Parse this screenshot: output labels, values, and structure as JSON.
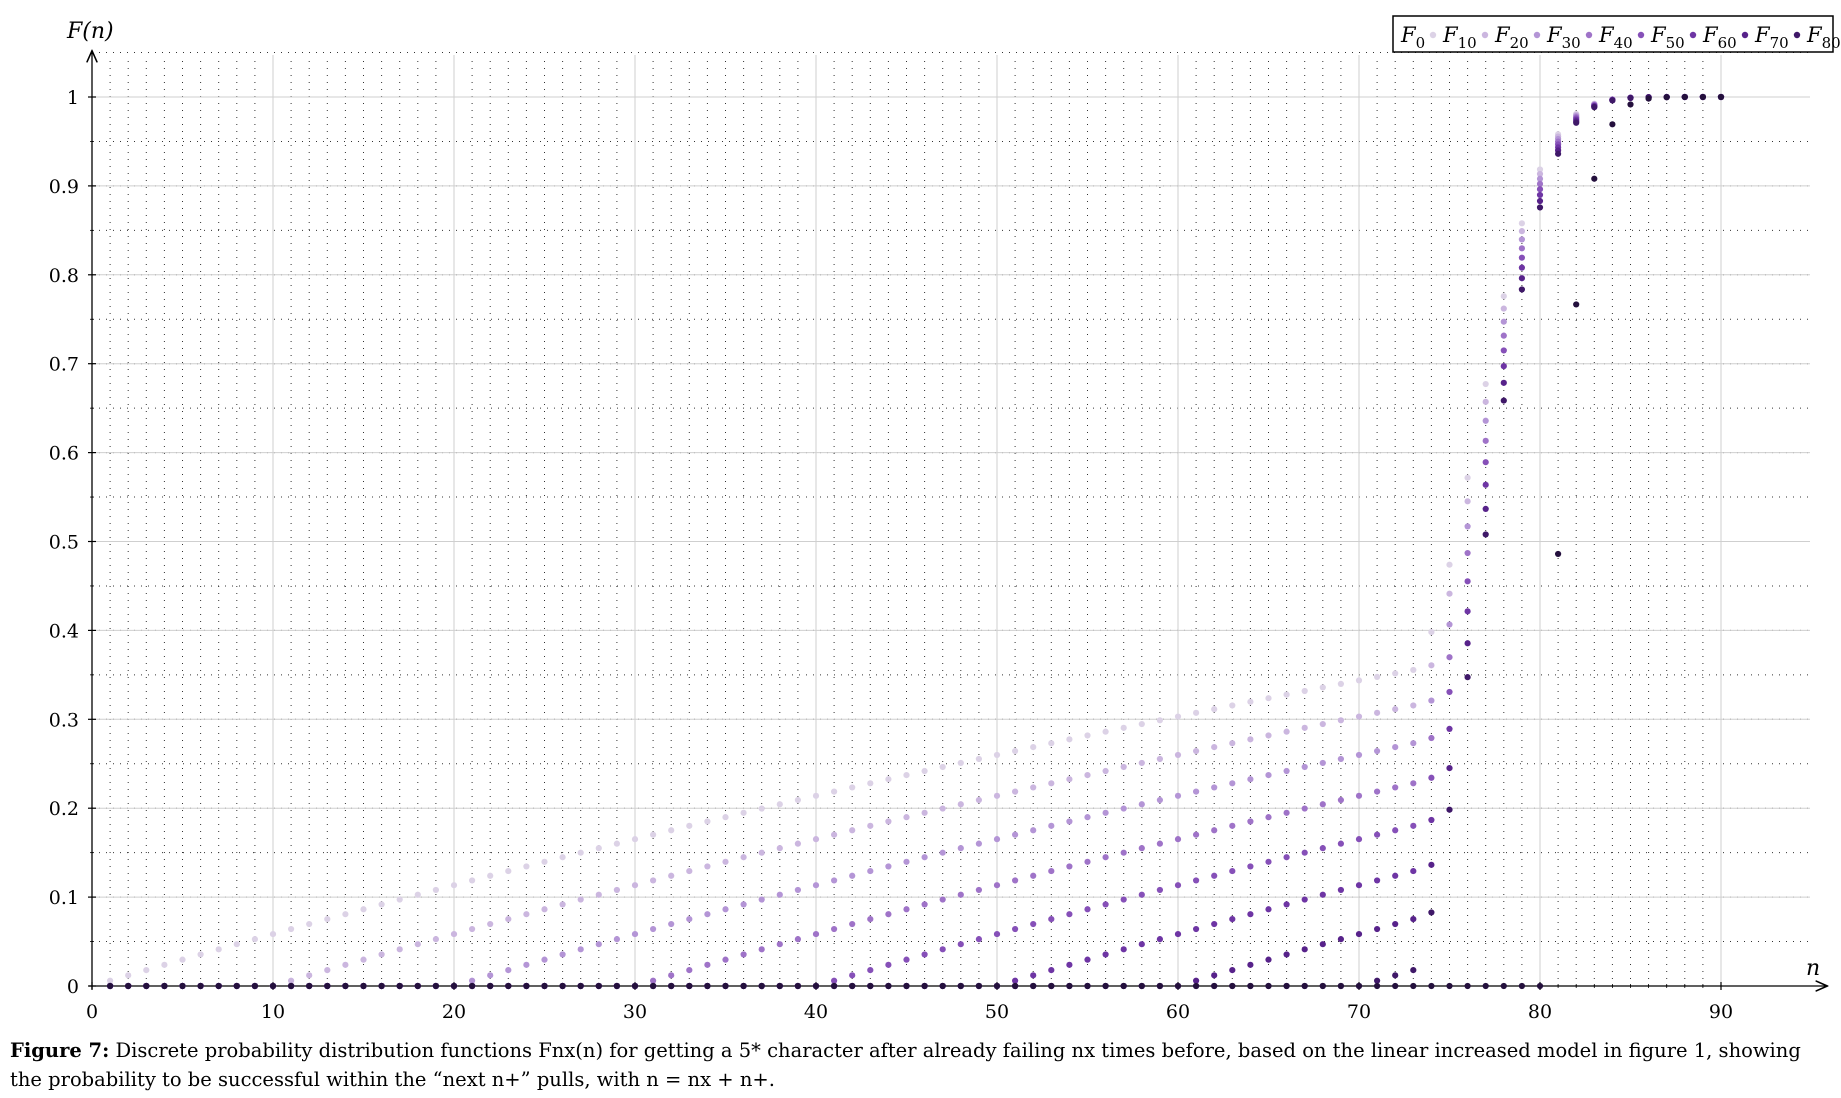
{
  "caption": {
    "label": "Figure 7:",
    "text": "Discrete probability distribution functions Fnx(n) for getting a 5* character after already failing nx times before, based on the linear increased model in figure 1, showing the probability to be successful within the “next n+” pulls, with n = nx + n+."
  },
  "colors": {
    "F0": "#dcd2e6",
    "F10": "#cbb6df",
    "F20": "#b495d6",
    "F30": "#9f73c8",
    "F40": "#8650b8",
    "F50": "#6e35a4",
    "F60": "#57228a",
    "F70": "#3f1868",
    "F80": "#24103d"
  },
  "chart_data": {
    "type": "scatter",
    "xlabel": "n",
    "ylabel": "F(n)",
    "xlim": [
      0,
      90
    ],
    "ylim": [
      0,
      1.0
    ],
    "x_ticks": [
      "0",
      "10",
      "20",
      "30",
      "40",
      "50",
      "60",
      "70",
      "80",
      "90"
    ],
    "y_ticks": [
      "0",
      "0.1",
      "0.2",
      "0.3",
      "0.4",
      "0.5",
      "0.6",
      "0.7",
      "0.8",
      "0.9",
      "1"
    ],
    "grid": true,
    "minor_grid": "dotted",
    "legend_position": "top-right",
    "legend": [
      {
        "main": "F",
        "sub": "0"
      },
      {
        "main": "F",
        "sub": "10"
      },
      {
        "main": "F",
        "sub": "20"
      },
      {
        "main": "F",
        "sub": "30"
      },
      {
        "main": "F",
        "sub": "40"
      },
      {
        "main": "F",
        "sub": "50"
      },
      {
        "main": "F",
        "sub": "60"
      },
      {
        "main": "F",
        "sub": "70"
      },
      {
        "main": "F",
        "sub": "80"
      }
    ],
    "model": {
      "base_rate": 0.006,
      "soft_pity_start": 74,
      "soft_pity_step": 0.06,
      "hard_pity": 90
    },
    "series": [
      {
        "offset": 0,
        "x_range": [
          1,
          90
        ]
      },
      {
        "offset": 10,
        "x_range": [
          1,
          90
        ]
      },
      {
        "offset": 20,
        "x_range": [
          1,
          90
        ]
      },
      {
        "offset": 30,
        "x_range": [
          1,
          90
        ]
      },
      {
        "offset": 40,
        "x_range": [
          1,
          90
        ]
      },
      {
        "offset": 50,
        "x_range": [
          1,
          90
        ]
      },
      {
        "offset": 60,
        "x_range": [
          1,
          90
        ]
      },
      {
        "offset": 70,
        "x_range": [
          1,
          90
        ]
      },
      {
        "offset": 80,
        "x_range": [
          1,
          90
        ]
      }
    ]
  }
}
